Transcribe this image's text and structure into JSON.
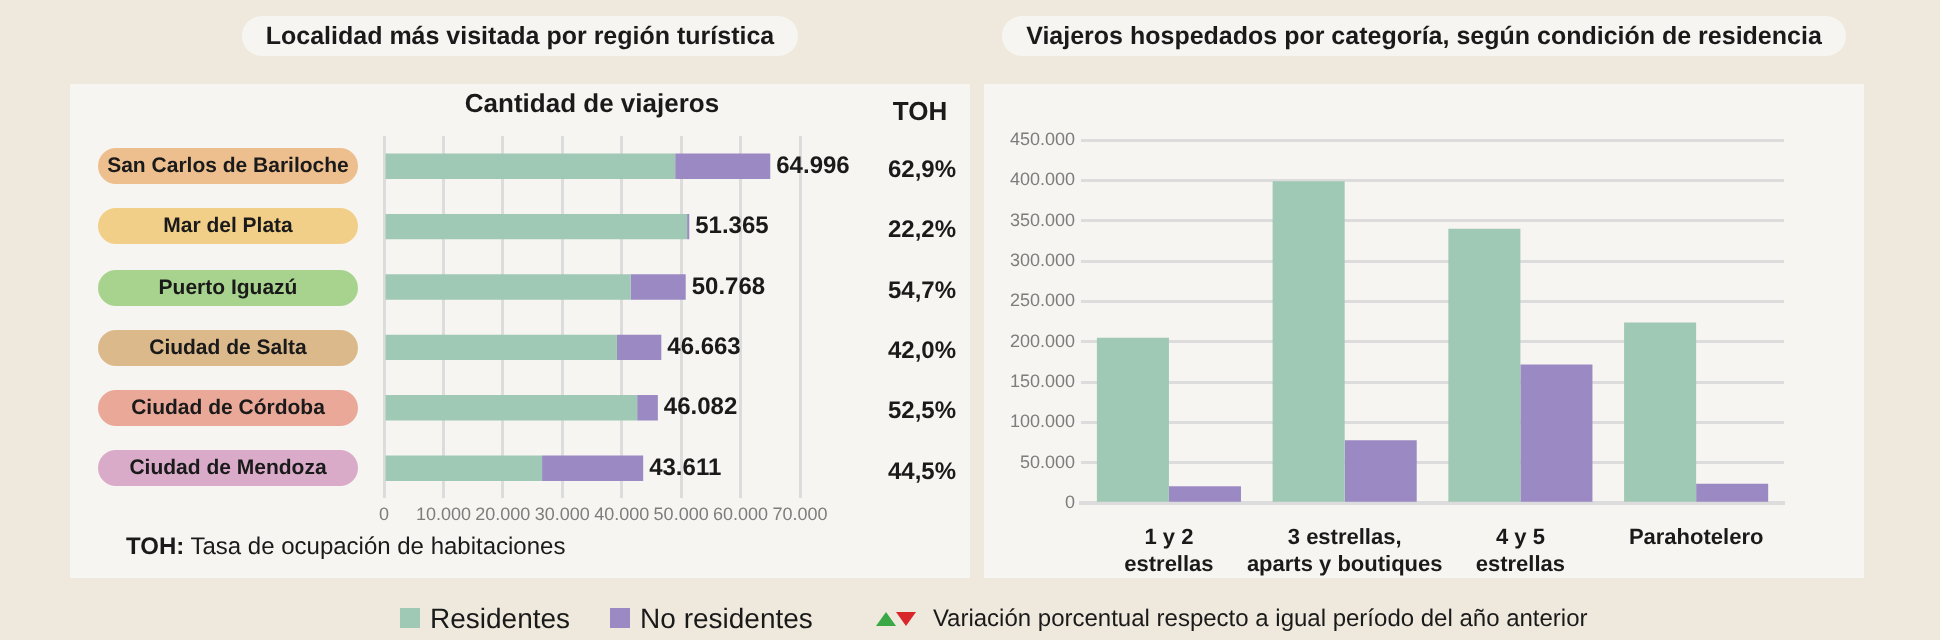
{
  "chart_data": [
    {
      "type": "bar",
      "orientation": "horizontal",
      "stacked": true,
      "title": "Localidad más visitada por región turística",
      "xlabel": "Cantidad de viajeros",
      "categories": [
        "San Carlos de Bariloche",
        "Mar del Plata",
        "Puerto Iguazú",
        "Ciudad de Salta",
        "Ciudad de Córdoba",
        "Ciudad de Mendoza"
      ],
      "series": [
        {
          "name": "Residentes",
          "color": "#a0c9b5",
          "values": [
            49000,
            51000,
            41500,
            39200,
            42600,
            26600
          ]
        },
        {
          "name": "No residentes",
          "color": "#9b89c3",
          "values": [
            15996,
            365,
            9268,
            7463,
            3482,
            17011
          ]
        }
      ],
      "totals": [
        "64.996",
        "51.365",
        "50.768",
        "46.663",
        "46.082",
        "43.611"
      ],
      "xlim": [
        0,
        70000
      ],
      "xticks": [
        0,
        {
          "value": 10000,
          "label": "10.000"
        },
        {
          "value": 20000,
          "label": "20.000"
        },
        {
          "value": 30000,
          "label": "30.000"
        },
        {
          "value": 40000,
          "label": "40.000"
        },
        {
          "value": 50000,
          "label": "50.000"
        },
        {
          "value": 60000,
          "label": "60.000"
        },
        {
          "value": 70000,
          "label": "70.000"
        }
      ],
      "grid": "x",
      "legend": "bottom",
      "annotations": [
        "TOH",
        "TOH: Tasa de ocupación de habitaciones",
        "62,9%",
        "22,2%",
        "54,7%",
        "42,0%",
        "52,5%",
        "44,5%"
      ]
    },
    {
      "type": "bar",
      "title": "Viajeros hospedados por categoría, según condición de residencia",
      "categories": [
        "1 y 2 estrellas",
        "3 estrellas, aparts y boutiques",
        "4 y 5 estrellas",
        "Parahotelero"
      ],
      "series": [
        {
          "name": "Residentes",
          "color": "#a0c9b5",
          "values": [
            205000,
            399000,
            340000,
            224000
          ]
        },
        {
          "name": "No residentes",
          "color": "#9b89c3",
          "values": [
            21000,
            78000,
            172000,
            24000
          ]
        }
      ],
      "ylim": [
        0,
        450000
      ],
      "yticks": [
        0,
        {
          "value": 50000,
          "label": "50.000"
        },
        {
          "value": 100000,
          "label": "100.000"
        },
        {
          "value": 150000,
          "label": "150.000"
        },
        {
          "value": 200000,
          "label": "200.000"
        },
        {
          "value": 250000,
          "label": "250.000"
        },
        {
          "value": 300000,
          "label": "300.000"
        },
        {
          "value": 350000,
          "label": "350.000"
        },
        {
          "value": 400000,
          "label": "400.000"
        },
        {
          "value": 450000,
          "label": "450.000"
        }
      ],
      "grid": "y",
      "legend": "bottom",
      "annotations": [
        "Variación porcentual respecto a igual período del año anterior"
      ]
    }
  ]
}
